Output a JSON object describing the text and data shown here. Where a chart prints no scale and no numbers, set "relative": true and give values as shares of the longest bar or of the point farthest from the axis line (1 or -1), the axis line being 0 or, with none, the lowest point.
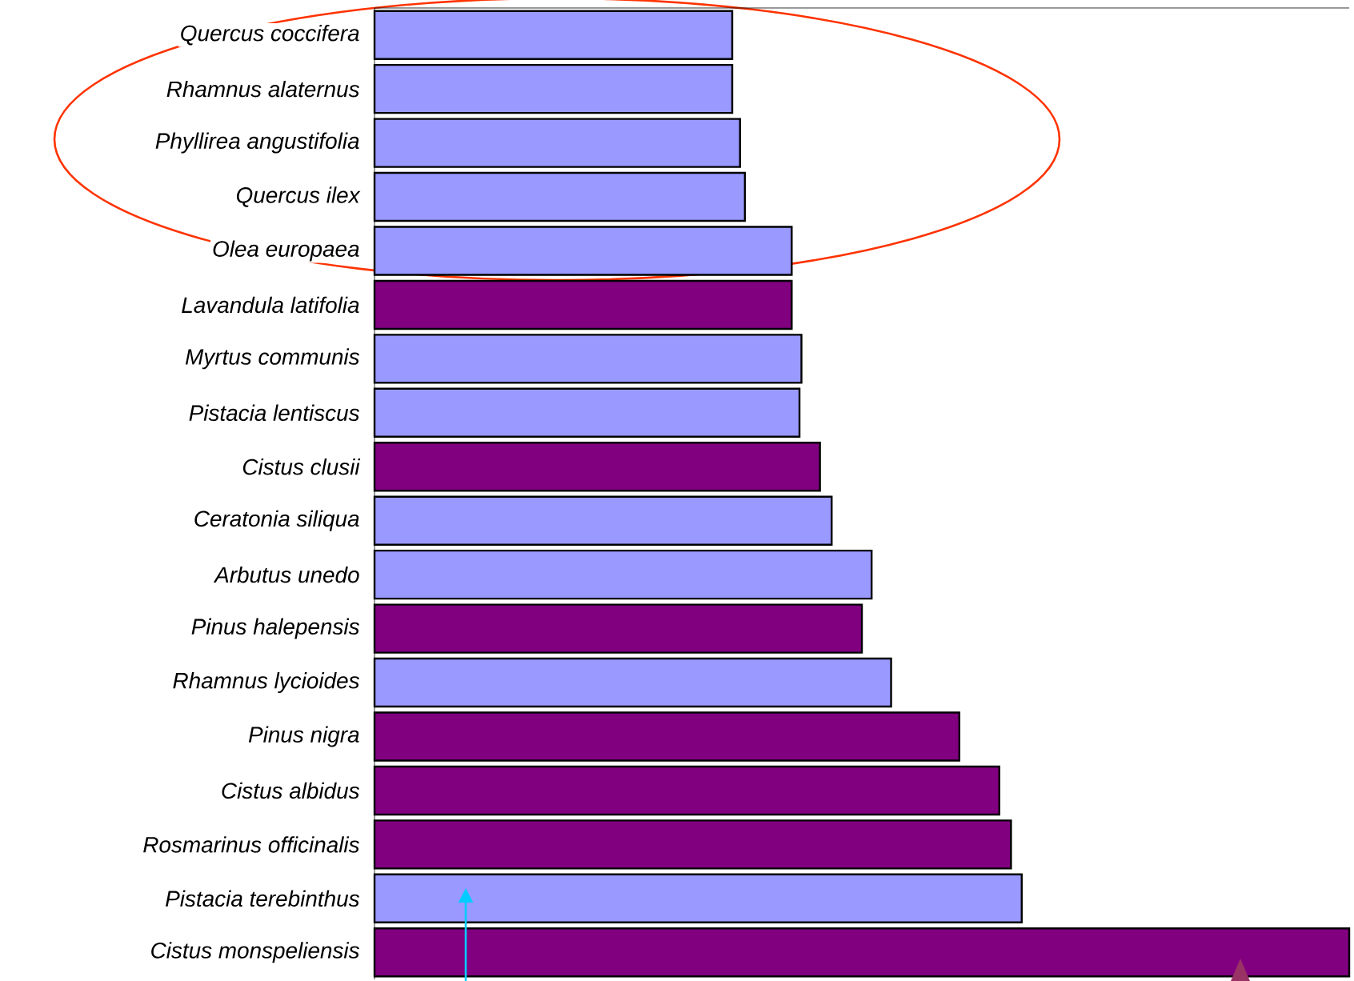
{
  "chart_data": {
    "type": "bar",
    "orientation": "horizontal",
    "relative": true,
    "categories": [
      "Quercus coccifera",
      "Rhamnus alaternus",
      "Phyllirea angustifolia",
      "Quercus ilex",
      "Olea europaea",
      "Lavandula latifolia",
      "Myrtus communis",
      "Pistacia lentiscus",
      "Cistus clusii",
      "Ceratonia siliqua",
      "Arbutus unedo",
      "Pinus halepensis",
      "Rhamnus lycioides",
      "Pinus nigra",
      "Cistus albidus",
      "Rosmarinus officinalis",
      "Pistacia terebinthus",
      "Cistus monspeliensis"
    ],
    "values": [
      0.367,
      0.367,
      0.375,
      0.38,
      0.428,
      0.428,
      0.438,
      0.436,
      0.457,
      0.469,
      0.51,
      0.5,
      0.53,
      0.6,
      0.641,
      0.653,
      0.664,
      1
    ],
    "colors": [
      "#9999ff",
      "#9999ff",
      "#9999ff",
      "#9999ff",
      "#9999ff",
      "#800080",
      "#9999ff",
      "#9999ff",
      "#800080",
      "#9999ff",
      "#9999ff",
      "#800080",
      "#9999ff",
      "#800080",
      "#800080",
      "#800080",
      "#9999ff",
      "#800080"
    ]
  }
}
